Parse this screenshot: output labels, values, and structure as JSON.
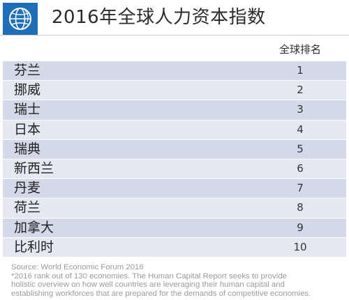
{
  "title": "2016年全球人力资本指数",
  "column_header": "全球排名",
  "colors": {
    "logo_bg": "#1e6fb7",
    "row_dark": "#d3d9e8",
    "row_light": "#e5e8f1"
  },
  "icons": {
    "logo": "globe-logo-icon"
  },
  "chart_data": {
    "type": "table",
    "title": "2016年全球人力资本指数",
    "columns": [
      "",
      "全球排名"
    ],
    "rows": [
      {
        "country": "芬兰",
        "rank": "1"
      },
      {
        "country": "挪威",
        "rank": "2"
      },
      {
        "country": "瑞士",
        "rank": "3"
      },
      {
        "country": "日本",
        "rank": "4"
      },
      {
        "country": "瑞典",
        "rank": "5"
      },
      {
        "country": "新西兰",
        "rank": "6"
      },
      {
        "country": "丹麦",
        "rank": "7"
      },
      {
        "country": "荷兰",
        "rank": "8"
      },
      {
        "country": "加拿大",
        "rank": "9"
      },
      {
        "country": "比利时",
        "rank": "10"
      }
    ]
  },
  "footnote": {
    "source": "Source: World Economic Forum 2016",
    "lines": [
      "*2016 rank out of 130 economies. The Human Capital Report seeks to provide",
      "holistic overview on how well countries are leveraging their human capital and",
      "establishing workforces that are prepared for the demands of competitive economies."
    ]
  }
}
